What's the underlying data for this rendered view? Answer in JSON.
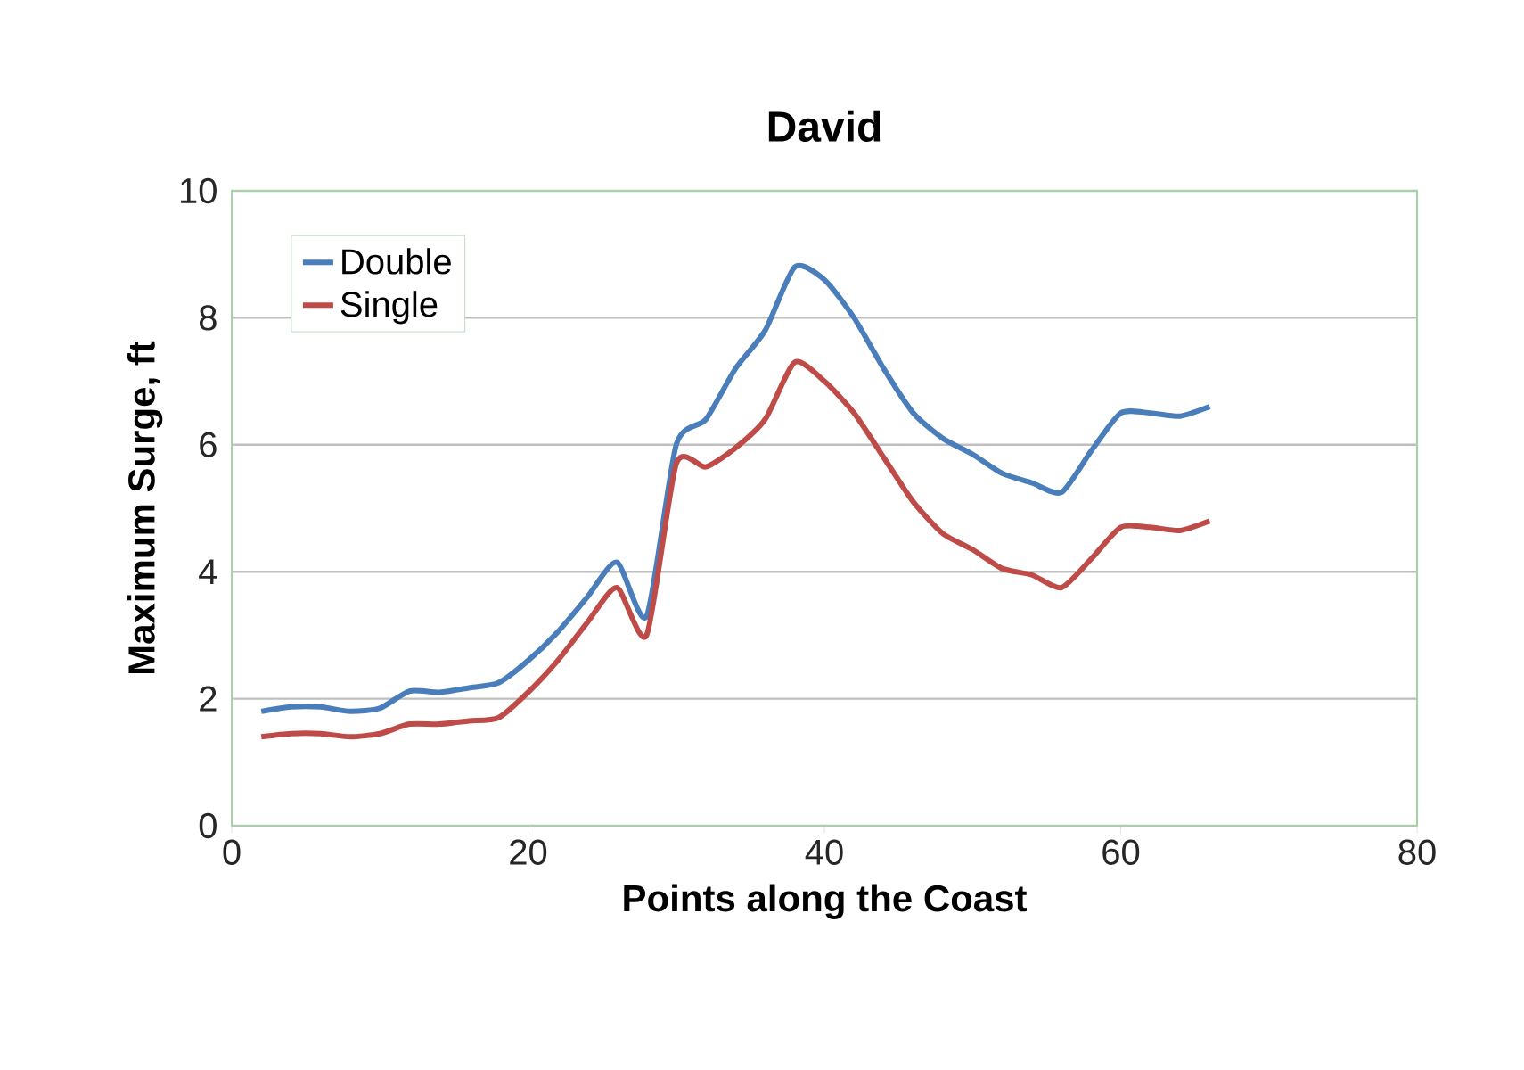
{
  "chart_data": {
    "type": "line",
    "title": "David",
    "xlabel": "Points along the Coast",
    "ylabel": "Maximum Surge, ft",
    "x": [
      2,
      4,
      6,
      8,
      10,
      12,
      14,
      16,
      18,
      20,
      22,
      24,
      26,
      28,
      30,
      32,
      34,
      36,
      38,
      40,
      42,
      44,
      46,
      48,
      50,
      52,
      54,
      56,
      58,
      60,
      62,
      64,
      66
    ],
    "series": [
      {
        "name": "Double",
        "color": "#4a7ebb",
        "values": [
          1.8,
          1.87,
          1.87,
          1.8,
          1.85,
          2.12,
          2.1,
          2.17,
          2.25,
          2.6,
          3.05,
          3.6,
          4.15,
          3.3,
          6.0,
          6.4,
          7.2,
          7.8,
          8.8,
          8.6,
          8.0,
          7.2,
          6.5,
          6.1,
          5.85,
          5.55,
          5.4,
          5.25,
          5.9,
          6.5,
          6.5,
          6.45,
          6.6
        ]
      },
      {
        "name": "Single",
        "color": "#be4b48",
        "values": [
          1.4,
          1.45,
          1.45,
          1.4,
          1.45,
          1.6,
          1.6,
          1.65,
          1.7,
          2.1,
          2.6,
          3.2,
          3.75,
          3.0,
          5.7,
          5.65,
          5.95,
          6.4,
          7.3,
          7.0,
          6.5,
          5.8,
          5.1,
          4.6,
          4.35,
          4.05,
          3.95,
          3.75,
          4.2,
          4.7,
          4.7,
          4.65,
          4.8
        ]
      }
    ],
    "xlim": [
      0,
      80
    ],
    "xticks": [
      0,
      20,
      40,
      60,
      80
    ],
    "ylim": [
      0,
      10
    ],
    "yticks": [
      0,
      2,
      4,
      6,
      8,
      10
    ],
    "grid": "y",
    "legend": "top left",
    "marker": "none",
    "line_style": "solid"
  }
}
